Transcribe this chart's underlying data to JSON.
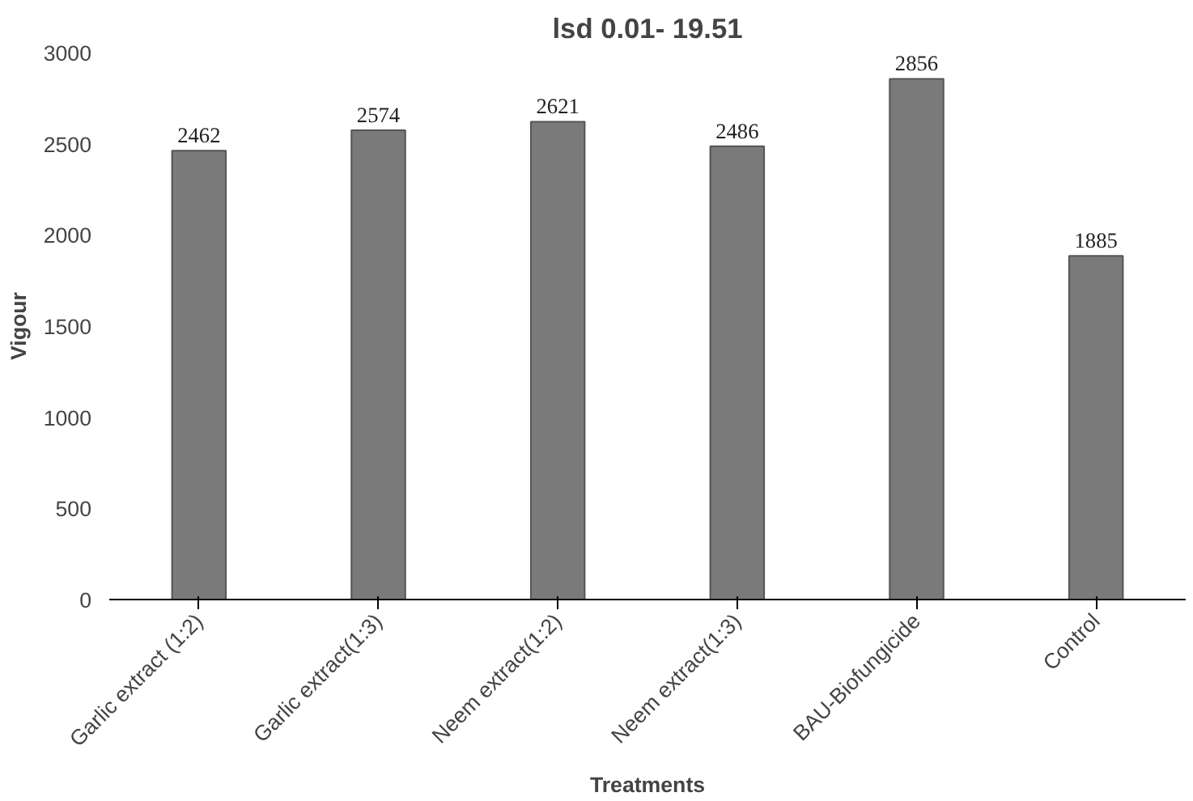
{
  "chart_data": {
    "type": "bar",
    "title": "lsd 0.01- 19.51",
    "xlabel": "Treatments",
    "ylabel": "Vigour",
    "categories": [
      "Garlic extract (1:2)",
      "Garlic extract(1:3)",
      "Neem extract(1:2)",
      "Neem extract(1:3)",
      "BAU-Biofungicide",
      "Control"
    ],
    "values": [
      2462,
      2574,
      2621,
      2486,
      2856,
      1885
    ],
    "color": "#7a7a7a",
    "ylim": [
      0,
      3000
    ],
    "yticks": [
      0,
      500,
      1000,
      1500,
      2000,
      2500,
      3000
    ],
    "grid": false,
    "data_labels": true
  }
}
